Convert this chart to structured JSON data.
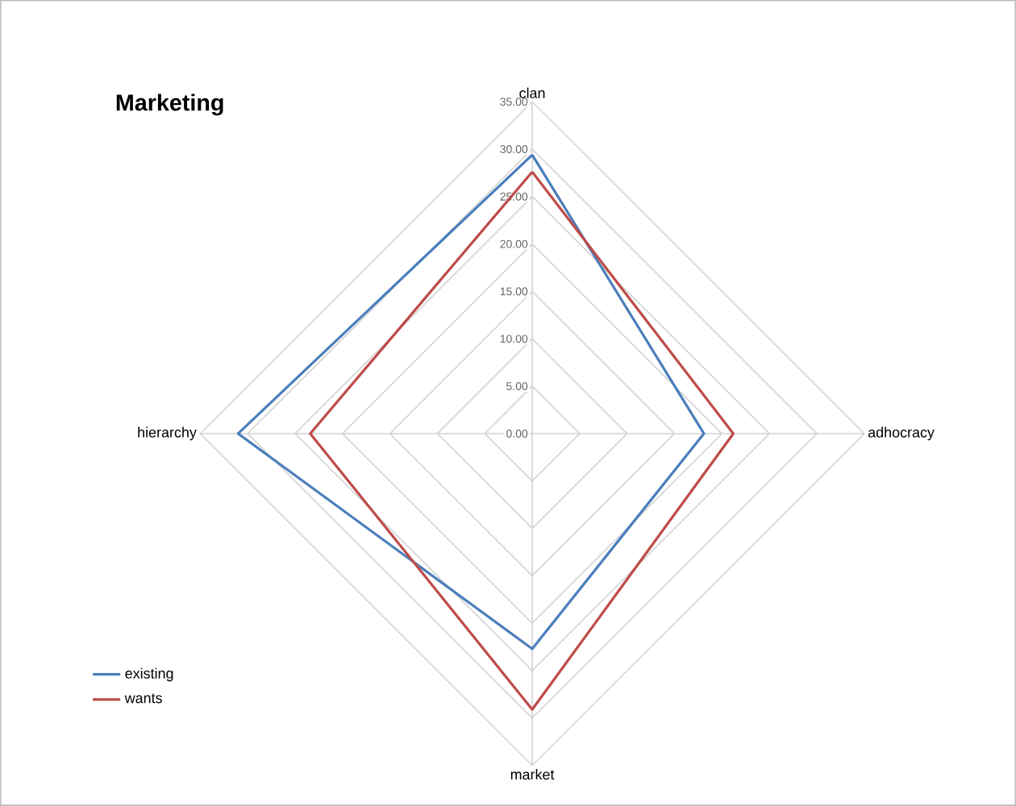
{
  "chart_data": {
    "type": "radar",
    "title": "Marketing",
    "categories": [
      "clan",
      "adhocracy",
      "market",
      "hierarchy"
    ],
    "series": [
      {
        "name": "existing",
        "color": "#4a7ebb",
        "values": [
          29.4,
          18.1,
          22.7,
          31.0
        ]
      },
      {
        "name": "wants",
        "color": "#be4b48",
        "values": [
          27.6,
          21.2,
          29.1,
          23.4
        ]
      }
    ],
    "ylim": [
      0,
      35
    ],
    "yticks": [
      {
        "value": 0,
        "label": "0.00"
      },
      {
        "value": 5,
        "label": "5.00"
      },
      {
        "value": 10,
        "label": "10.00"
      },
      {
        "value": 15,
        "label": "15.00"
      },
      {
        "value": 20,
        "label": "20.00"
      },
      {
        "value": 25,
        "label": "25.00"
      },
      {
        "value": 30,
        "label": "30.00"
      },
      {
        "value": 35,
        "label": "35.00"
      }
    ],
    "grid": true,
    "legend": "bottom left"
  }
}
